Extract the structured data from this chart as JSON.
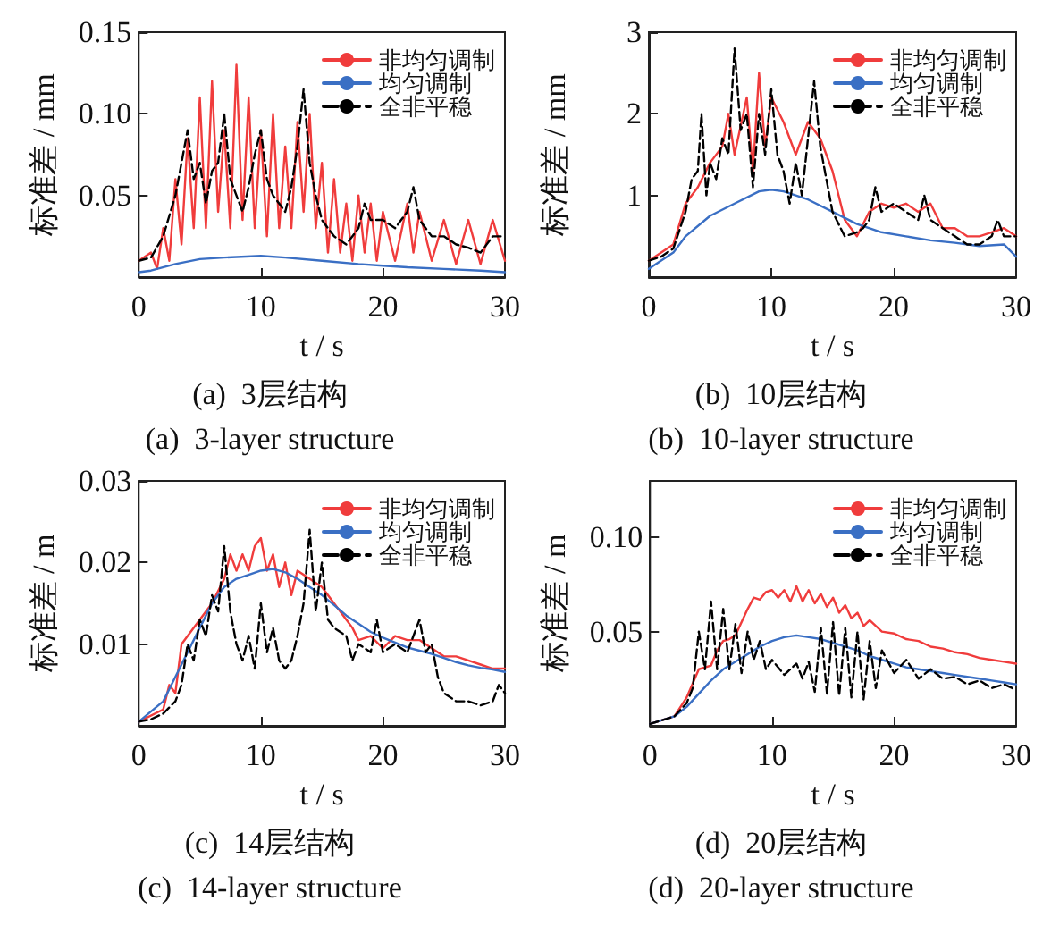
{
  "chart_data": [
    {
      "type": "line",
      "title": "(a)  3层结构",
      "subtitle": "(a)  3-layer structure",
      "xlabel": "t / s",
      "ylabel": "标准差 / mm",
      "xlim": [
        0,
        30
      ],
      "xticks": [
        0,
        10,
        20,
        30
      ],
      "ylim": [
        0,
        0.15
      ],
      "yticks": [
        0.05,
        {
          "value": 0.1,
          "label": "0.10"
        },
        0.15
      ],
      "legend": "top right",
      "series": [
        {
          "name": "非均匀调制",
          "color": "#f03c3c",
          "line_style": "solid",
          "x": [
            0,
            1,
            1.5,
            2,
            2.5,
            3,
            3.5,
            4,
            4.5,
            5,
            5.5,
            6,
            6.5,
            7,
            7.5,
            8,
            8.5,
            9,
            9.5,
            10,
            10.5,
            11,
            11.5,
            12,
            12.5,
            13,
            13.5,
            14,
            14.5,
            15,
            15.5,
            16,
            16.5,
            17,
            17.5,
            18,
            18.5,
            19,
            19.5,
            20,
            21,
            22,
            22.5,
            23,
            24,
            25,
            26,
            27,
            28,
            29,
            30
          ],
          "values": [
            0.01,
            0.015,
            0.005,
            0.03,
            0.01,
            0.06,
            0.02,
            0.085,
            0.03,
            0.11,
            0.03,
            0.12,
            0.04,
            0.09,
            0.03,
            0.13,
            0.035,
            0.11,
            0.03,
            0.09,
            0.025,
            0.1,
            0.03,
            0.08,
            0.03,
            0.095,
            0.04,
            0.1,
            0.03,
            0.07,
            0.015,
            0.06,
            0.015,
            0.045,
            0.01,
            0.05,
            0.015,
            0.045,
            0.01,
            0.04,
            0.01,
            0.045,
            0.015,
            0.04,
            0.01,
            0.035,
            0.008,
            0.035,
            0.008,
            0.035,
            0.01
          ]
        },
        {
          "name": "均匀调制",
          "color": "#3a6fc4",
          "line_style": "solid",
          "x": [
            0,
            1,
            3,
            5,
            7,
            10,
            12,
            15,
            18,
            20,
            22,
            25,
            28,
            30
          ],
          "values": [
            0.003,
            0.004,
            0.008,
            0.011,
            0.012,
            0.013,
            0.012,
            0.01,
            0.008,
            0.007,
            0.006,
            0.005,
            0.004,
            0.003
          ]
        },
        {
          "name": "全非平稳",
          "color": "#000000",
          "line_style": "dashed",
          "x": [
            0,
            1,
            2,
            3,
            4,
            4.5,
            5,
            5.5,
            6,
            6.5,
            7,
            7.5,
            8,
            8.5,
            9,
            9.5,
            10,
            10.5,
            11,
            11.5,
            12,
            12.5,
            13,
            13.5,
            14,
            14.5,
            15,
            16,
            17,
            18,
            18.5,
            19,
            20,
            21,
            22,
            22.5,
            23,
            24,
            25,
            26,
            27,
            28,
            29,
            30
          ],
          "values": [
            0.01,
            0.012,
            0.025,
            0.05,
            0.09,
            0.06,
            0.07,
            0.045,
            0.065,
            0.07,
            0.1,
            0.06,
            0.05,
            0.04,
            0.055,
            0.075,
            0.09,
            0.06,
            0.05,
            0.045,
            0.04,
            0.055,
            0.08,
            0.115,
            0.07,
            0.05,
            0.035,
            0.025,
            0.02,
            0.03,
            0.045,
            0.035,
            0.035,
            0.03,
            0.04,
            0.055,
            0.035,
            0.025,
            0.025,
            0.02,
            0.018,
            0.015,
            0.025,
            0.025
          ]
        }
      ]
    },
    {
      "type": "line",
      "title": "(b)  10层结构",
      "subtitle": "(b)  10-layer structure",
      "xlabel": "t / s",
      "ylabel": "标准差 / mm",
      "xlim": [
        0,
        30
      ],
      "xticks": [
        0,
        10,
        20,
        30
      ],
      "ylim": [
        0,
        3
      ],
      "yticks": [
        1,
        2,
        3
      ],
      "legend": "top right",
      "series": [
        {
          "name": "非均匀调制",
          "color": "#f03c3c",
          "line_style": "solid",
          "x": [
            0,
            2,
            3,
            4,
            5,
            6,
            6.5,
            7,
            8,
            8.5,
            9,
            9.5,
            10,
            11,
            12,
            13,
            14,
            15,
            16,
            17,
            18,
            19,
            20,
            21,
            22,
            23,
            24,
            25,
            26,
            27,
            28,
            29,
            30
          ],
          "values": [
            0.2,
            0.4,
            0.9,
            1.1,
            1.4,
            1.6,
            2,
            1.5,
            2.2,
            1.3,
            2.5,
            1.6,
            2.2,
            1.9,
            1.5,
            1.9,
            1.7,
            1.3,
            0.7,
            0.5,
            0.8,
            0.9,
            0.85,
            0.9,
            0.8,
            0.9,
            0.6,
            0.6,
            0.5,
            0.5,
            0.55,
            0.6,
            0.5
          ]
        },
        {
          "name": "均匀调制",
          "color": "#3a6fc4",
          "line_style": "solid",
          "x": [
            0,
            2,
            3,
            5,
            7,
            9,
            10,
            11,
            13,
            15,
            17,
            19,
            21,
            23,
            25,
            27,
            29,
            30
          ],
          "values": [
            0.1,
            0.3,
            0.5,
            0.75,
            0.9,
            1.05,
            1.07,
            1.05,
            0.95,
            0.8,
            0.65,
            0.55,
            0.5,
            0.45,
            0.42,
            0.38,
            0.4,
            0.25
          ]
        },
        {
          "name": "全非平稳",
          "color": "#000000",
          "line_style": "dashed",
          "x": [
            0,
            1,
            2,
            3,
            3.5,
            4,
            4.3,
            4.7,
            5,
            5.5,
            6,
            6.5,
            7,
            7.5,
            8,
            8.5,
            9,
            9.5,
            10,
            10.5,
            11,
            11.5,
            12,
            12.5,
            13,
            13.5,
            14,
            14.5,
            15,
            16,
            17,
            17.5,
            18,
            18.5,
            19,
            20,
            21,
            22,
            22.5,
            23,
            24,
            25,
            26,
            27,
            28,
            28.5,
            29,
            30
          ],
          "values": [
            0.2,
            0.25,
            0.35,
            0.8,
            1.2,
            1.3,
            2,
            1,
            1.4,
            1.2,
            1.7,
            1.5,
            2.8,
            1.8,
            2,
            1.1,
            2,
            1.5,
            2.3,
            1.5,
            1.3,
            0.9,
            1.4,
            1,
            1.7,
            2.4,
            1.6,
            1.2,
            0.8,
            0.5,
            0.55,
            0.6,
            0.7,
            1.1,
            0.8,
            0.9,
            0.8,
            0.7,
            1,
            0.7,
            0.6,
            0.5,
            0.4,
            0.4,
            0.5,
            0.7,
            0.5,
            0.5
          ]
        }
      ]
    },
    {
      "type": "line",
      "title": "(c)  14层结构",
      "subtitle": "(c)  14-layer structure",
      "xlabel": "t / s",
      "ylabel": "标准差 / m",
      "xlim": [
        0,
        30
      ],
      "xticks": [
        0,
        10,
        20,
        30
      ],
      "ylim": [
        0,
        0.03
      ],
      "yticks": [
        0.01,
        0.02,
        0.03
      ],
      "legend": "top right",
      "series": [
        {
          "name": "非均匀调制",
          "color": "#f03c3c",
          "line_style": "solid",
          "x": [
            0,
            2,
            2.5,
            3,
            3.5,
            4,
            5,
            6,
            7,
            7.5,
            8,
            8.5,
            9,
            9.5,
            10,
            10.5,
            11,
            11.5,
            12,
            12.5,
            13,
            14,
            15,
            16,
            17,
            17.5,
            18,
            19,
            20,
            21,
            22,
            23,
            24,
            25,
            26,
            27,
            28,
            29,
            30
          ],
          "values": [
            0.0005,
            0.002,
            0.005,
            0.004,
            0.01,
            0.011,
            0.013,
            0.015,
            0.018,
            0.021,
            0.019,
            0.021,
            0.019,
            0.022,
            0.023,
            0.019,
            0.021,
            0.017,
            0.02,
            0.016,
            0.019,
            0.018,
            0.017,
            0.015,
            0.013,
            0.012,
            0.0105,
            0.011,
            0.0095,
            0.011,
            0.0105,
            0.0105,
            0.0095,
            0.0085,
            0.0085,
            0.008,
            0.0075,
            0.007,
            0.007
          ]
        },
        {
          "name": "均匀调制",
          "color": "#3a6fc4",
          "line_style": "solid",
          "x": [
            0,
            2,
            3,
            4,
            5,
            6,
            7,
            8,
            9,
            10,
            11,
            12,
            13,
            14,
            15,
            16,
            17,
            18,
            19,
            20,
            21,
            22,
            23,
            24,
            25,
            26,
            27,
            28,
            29,
            30
          ],
          "values": [
            0.0005,
            0.003,
            0.006,
            0.009,
            0.012,
            0.015,
            0.017,
            0.018,
            0.0185,
            0.019,
            0.0192,
            0.0188,
            0.018,
            0.017,
            0.016,
            0.0148,
            0.0135,
            0.0125,
            0.0115,
            0.0108,
            0.0102,
            0.0096,
            0.0092,
            0.0088,
            0.0083,
            0.0078,
            0.0074,
            0.0071,
            0.0069,
            0.0066
          ]
        },
        {
          "name": "全非平稳",
          "color": "#000000",
          "line_style": "dashed",
          "x": [
            0,
            1,
            2,
            3,
            3.5,
            4,
            4.5,
            5,
            5.5,
            6,
            6.5,
            7,
            7.5,
            8,
            8.5,
            9,
            9.5,
            10,
            10.5,
            11,
            11.5,
            12,
            12.5,
            13,
            13.5,
            14,
            14.5,
            15,
            15.5,
            16,
            17,
            17.5,
            18,
            19,
            19.5,
            20,
            21,
            22,
            23,
            23.5,
            24,
            24.5,
            25,
            26,
            27,
            28,
            29,
            29.5,
            30
          ],
          "values": [
            0.0005,
            0.0008,
            0.0015,
            0.003,
            0.005,
            0.01,
            0.008,
            0.013,
            0.011,
            0.016,
            0.014,
            0.022,
            0.014,
            0.01,
            0.008,
            0.011,
            0.007,
            0.015,
            0.009,
            0.012,
            0.008,
            0.007,
            0.008,
            0.011,
            0.015,
            0.024,
            0.014,
            0.02,
            0.013,
            0.012,
            0.011,
            0.008,
            0.01,
            0.009,
            0.013,
            0.009,
            0.01,
            0.009,
            0.013,
            0.009,
            0.01,
            0.006,
            0.004,
            0.003,
            0.003,
            0.0025,
            0.003,
            0.005,
            0.004
          ]
        }
      ]
    },
    {
      "type": "line",
      "title": "(d)  20层结构",
      "subtitle": "(d)  20-layer structure",
      "xlabel": "t / s",
      "ylabel": "标准差 / m",
      "xlim": [
        0,
        30
      ],
      "xticks": [
        0,
        10,
        20,
        30
      ],
      "ylim": [
        0,
        0.13
      ],
      "yticks": [
        0.05,
        {
          "value": 0.1,
          "label": "0.10"
        }
      ],
      "legend": "top right",
      "series": [
        {
          "name": "非均匀调制",
          "color": "#f03c3c",
          "line_style": "solid",
          "x": [
            0,
            2,
            3,
            4,
            5,
            5.5,
            6,
            6.5,
            7,
            7.5,
            8,
            8.5,
            9,
            9.5,
            10,
            10.5,
            11,
            11.5,
            12,
            12.5,
            13,
            13.5,
            14,
            14.5,
            15,
            15.5,
            16,
            16.5,
            17,
            17.5,
            18,
            19,
            20,
            21,
            22,
            23,
            24,
            25,
            26,
            27,
            28,
            29,
            30
          ],
          "values": [
            0.001,
            0.005,
            0.015,
            0.03,
            0.032,
            0.04,
            0.045,
            0.046,
            0.048,
            0.055,
            0.062,
            0.068,
            0.067,
            0.071,
            0.072,
            0.068,
            0.072,
            0.066,
            0.074,
            0.066,
            0.072,
            0.065,
            0.07,
            0.063,
            0.068,
            0.06,
            0.064,
            0.057,
            0.06,
            0.053,
            0.056,
            0.05,
            0.049,
            0.046,
            0.045,
            0.042,
            0.041,
            0.039,
            0.038,
            0.036,
            0.035,
            0.034,
            0.033
          ]
        },
        {
          "name": "均匀调制",
          "color": "#3a6fc4",
          "line_style": "solid",
          "x": [
            0,
            2,
            3,
            4,
            5,
            6,
            7,
            8,
            9,
            10,
            11,
            12,
            13,
            14,
            15,
            16,
            17,
            18,
            19,
            20,
            21,
            22,
            23,
            24,
            25,
            26,
            27,
            28,
            29,
            30
          ],
          "values": [
            0.001,
            0.005,
            0.01,
            0.017,
            0.024,
            0.03,
            0.034,
            0.038,
            0.042,
            0.045,
            0.047,
            0.048,
            0.047,
            0.046,
            0.044,
            0.042,
            0.04,
            0.037,
            0.035,
            0.033,
            0.031,
            0.03,
            0.029,
            0.028,
            0.027,
            0.026,
            0.025,
            0.024,
            0.023,
            0.022
          ]
        },
        {
          "name": "全非平稳",
          "color": "#000000",
          "line_style": "dashed",
          "x": [
            0,
            2,
            3,
            3.5,
            4,
            4.5,
            5,
            5.5,
            6,
            6.5,
            7,
            7.5,
            8,
            8.5,
            9,
            9.5,
            10,
            11,
            12,
            12.5,
            13,
            13.5,
            14,
            14.5,
            15,
            15.5,
            16,
            16.5,
            17,
            17.5,
            18,
            18.5,
            19,
            20,
            21,
            22,
            23,
            24,
            25,
            26,
            27,
            28,
            29,
            30
          ],
          "values": [
            0.001,
            0.005,
            0.012,
            0.02,
            0.05,
            0.03,
            0.066,
            0.03,
            0.062,
            0.03,
            0.054,
            0.028,
            0.05,
            0.035,
            0.045,
            0.03,
            0.035,
            0.027,
            0.033,
            0.025,
            0.034,
            0.018,
            0.052,
            0.017,
            0.055,
            0.016,
            0.052,
            0.015,
            0.05,
            0.014,
            0.045,
            0.02,
            0.04,
            0.028,
            0.035,
            0.025,
            0.03,
            0.025,
            0.026,
            0.022,
            0.024,
            0.02,
            0.022,
            0.019
          ]
        }
      ]
    }
  ]
}
